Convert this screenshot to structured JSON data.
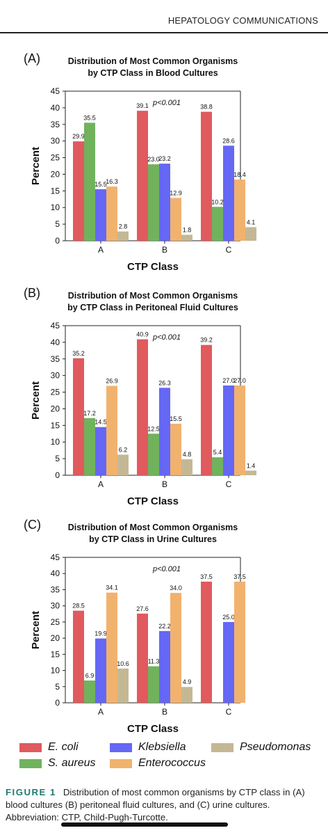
{
  "header": {
    "journal": "HEPATOLOGY COMMUNICATIONS"
  },
  "series_meta": [
    {
      "name": "E. coli",
      "color": "#E05A5E"
    },
    {
      "name": "S. aureus",
      "color": "#71B25D"
    },
    {
      "name": "Klebsiella",
      "color": "#6567F5"
    },
    {
      "name": "Enterococcus",
      "color": "#F1B26E"
    },
    {
      "name": "Pseudomonas",
      "color": "#C4B894"
    }
  ],
  "chart_data": [
    {
      "type": "bar",
      "panel_label": "(A)",
      "title_lines": [
        "Distribution of Most Common Organisms",
        "by CTP Class in Blood Cultures"
      ],
      "annotation": "p<0.001",
      "xlabel": "CTP Class",
      "ylabel": "Percent",
      "ylim": [
        0,
        45
      ],
      "yticks": [
        0,
        5,
        10,
        15,
        20,
        25,
        30,
        35,
        40,
        45
      ],
      "categories": [
        "A",
        "B",
        "C"
      ],
      "series": [
        {
          "name": "E. coli",
          "values": [
            29.9,
            39.1,
            38.8
          ]
        },
        {
          "name": "S. aureus",
          "values": [
            35.5,
            23.0,
            10.2
          ]
        },
        {
          "name": "Klebsiella",
          "values": [
            15.5,
            23.2,
            28.6
          ]
        },
        {
          "name": "Enterococcus",
          "values": [
            16.3,
            12.9,
            18.4
          ]
        },
        {
          "name": "Pseudomonas",
          "values": [
            2.8,
            1.8,
            4.1
          ]
        }
      ],
      "labels": [
        [
          "29.9",
          "39.1",
          "38.8"
        ],
        [
          "35.5",
          "23.0",
          "10.2"
        ],
        [
          "15.5",
          "23.2",
          "28.6"
        ],
        [
          "16.3",
          "12.9",
          "18.4"
        ],
        [
          "2.8",
          "1.8",
          "4.1"
        ]
      ]
    },
    {
      "type": "bar",
      "panel_label": "(B)",
      "title_lines": [
        "Distribution of Most Common Organisms",
        "by CTP Class in Peritoneal Fluid Cultures"
      ],
      "annotation": "p<0.001",
      "xlabel": "CTP Class",
      "ylabel": "Percent",
      "ylim": [
        0,
        45
      ],
      "yticks": [
        0,
        5,
        10,
        15,
        20,
        25,
        30,
        35,
        40,
        45
      ],
      "categories": [
        "A",
        "B",
        "C"
      ],
      "series": [
        {
          "name": "E. coli",
          "values": [
            35.2,
            40.9,
            39.2
          ]
        },
        {
          "name": "S. aureus",
          "values": [
            17.2,
            12.5,
            5.4
          ]
        },
        {
          "name": "Klebsiella",
          "values": [
            14.5,
            26.3,
            27.0
          ]
        },
        {
          "name": "Enterococcus",
          "values": [
            26.9,
            15.5,
            27.0
          ]
        },
        {
          "name": "Pseudomonas",
          "values": [
            6.2,
            4.8,
            1.4
          ]
        }
      ],
      "labels": [
        [
          "35.2",
          "40.9",
          "39.2"
        ],
        [
          "17.2",
          "12.5",
          "5.4"
        ],
        [
          "14.5",
          "26.3",
          "27.0"
        ],
        [
          "26.9",
          "15.5",
          "27.0"
        ],
        [
          "6.2",
          "4.8",
          "1.4"
        ]
      ]
    },
    {
      "type": "bar",
      "panel_label": "(C)",
      "title_lines": [
        "Distribution of Most Common Organisms",
        "by CTP Class in Urine Cultures"
      ],
      "annotation": "p<0.001",
      "xlabel": "CTP Class",
      "ylabel": "Percent",
      "ylim": [
        0,
        45
      ],
      "yticks": [
        0,
        5,
        10,
        15,
        20,
        25,
        30,
        35,
        40,
        45
      ],
      "categories": [
        "A",
        "B",
        "C"
      ],
      "series": [
        {
          "name": "E. coli",
          "values": [
            28.5,
            27.6,
            37.5
          ]
        },
        {
          "name": "S. aureus",
          "values": [
            6.9,
            11.3,
            null
          ]
        },
        {
          "name": "Klebsiella",
          "values": [
            19.9,
            22.2,
            25.0
          ]
        },
        {
          "name": "Enterococcus",
          "values": [
            34.1,
            34.0,
            37.5
          ]
        },
        {
          "name": "Pseudomonas",
          "values": [
            10.6,
            4.9,
            null
          ]
        }
      ],
      "labels": [
        [
          "28.5",
          "27.6",
          "37.5"
        ],
        [
          "6.9",
          "11.3",
          null
        ],
        [
          "19.9",
          "22.2",
          "25.0"
        ],
        [
          "34.1",
          "34.0",
          "37.5"
        ],
        [
          "10.6",
          "4.9",
          null
        ]
      ]
    }
  ],
  "caption": {
    "figure_label": "FIGURE 1",
    "text": "Distribution of most common organisms by CTP class in (A) blood cultures (B) peritoneal fluid cultures, and (C) urine cultures. Abbreviation: CTP, Child-Pugh-Turcotte."
  }
}
